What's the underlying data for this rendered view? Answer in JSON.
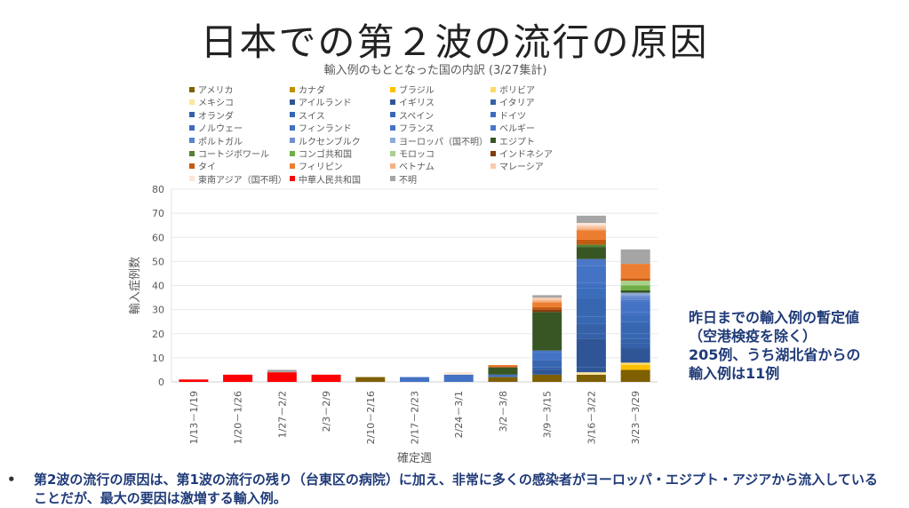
{
  "slide_title": "日本での第２波の流行の原因",
  "note": [
    "昨日までの輸入例の暫定値",
    "（空港検疫を除く）",
    "205例、うち湖北省からの",
    "輸入例は11例"
  ],
  "bullet": {
    "marker": "•",
    "text": "第2波の流行の原因は、第1波の流行の残り（台東区の病院）に加え、非常に多くの感染者がヨーロッパ・エジプト・アジアから流入していることだが、最大の要因は激増する輸入例。"
  },
  "chart_data": {
    "type": "bar",
    "stacked": true,
    "title": "輸入例のもととなった国の内訳 (3/27集計)",
    "xlabel": "確定週",
    "ylabel": "輸入症例数",
    "ylim": [
      0,
      80
    ],
    "yticks": [
      0,
      10,
      20,
      30,
      40,
      50,
      60,
      70,
      80
    ],
    "grid": true,
    "legend_position": "top",
    "categories": [
      "1/13－1/19",
      "1/20－1/26",
      "1/27－2/2",
      "2/3－2/9",
      "2/10－2/16",
      "2/17－2/23",
      "2/24－3/1",
      "3/2－3/8",
      "3/9－3/15",
      "3/16－3/22",
      "3/23－3/29"
    ],
    "series": [
      {
        "name": "アメリカ",
        "color": "#7f6000",
        "values": [
          0,
          0,
          0,
          0,
          2,
          0,
          0,
          2,
          3,
          3,
          5
        ]
      },
      {
        "name": "カナダ",
        "color": "#bf9000",
        "values": [
          0,
          0,
          0,
          0,
          0,
          0,
          0,
          0,
          0,
          0,
          0
        ]
      },
      {
        "name": "ブラジル",
        "color": "#ffc000",
        "values": [
          0,
          0,
          0,
          0,
          0,
          0,
          0,
          0,
          0,
          0,
          2
        ]
      },
      {
        "name": "ボリビア",
        "color": "#ffd966",
        "values": [
          0,
          0,
          0,
          0,
          0,
          0,
          0,
          0,
          0,
          0,
          1
        ]
      },
      {
        "name": "メキシコ",
        "color": "#ffe699",
        "values": [
          0,
          0,
          0,
          0,
          0,
          0,
          0,
          0,
          0,
          1,
          0
        ]
      },
      {
        "name": "アイルランド",
        "color": "#2f5597",
        "values": [
          0,
          0,
          0,
          0,
          0,
          0,
          0,
          0,
          0,
          2,
          0
        ]
      },
      {
        "name": "イギリス",
        "color": "#2f5597",
        "values": [
          0,
          0,
          0,
          0,
          0,
          0,
          0,
          0,
          2,
          12,
          6
        ]
      },
      {
        "name": "イタリア",
        "color": "#3461a8",
        "values": [
          0,
          0,
          0,
          0,
          0,
          0,
          0,
          0,
          1,
          2,
          2
        ]
      },
      {
        "name": "オランダ",
        "color": "#3461a8",
        "values": [
          0,
          0,
          0,
          0,
          0,
          0,
          0,
          0,
          0,
          4,
          2
        ]
      },
      {
        "name": "スイス",
        "color": "#3867b2",
        "values": [
          0,
          0,
          0,
          0,
          0,
          0,
          0,
          0,
          1,
          3,
          2
        ]
      },
      {
        "name": "スペイン",
        "color": "#3867b2",
        "values": [
          0,
          0,
          0,
          0,
          0,
          0,
          0,
          0,
          2,
          8,
          5
        ]
      },
      {
        "name": "ドイツ",
        "color": "#3c6dbd",
        "values": [
          0,
          0,
          0,
          0,
          0,
          0,
          0,
          0,
          0,
          4,
          3
        ]
      },
      {
        "name": "ノルウェー",
        "color": "#3c6dbd",
        "values": [
          0,
          0,
          0,
          0,
          0,
          0,
          0,
          0,
          0,
          1,
          0
        ]
      },
      {
        "name": "フィンランド",
        "color": "#4270c4",
        "values": [
          0,
          0,
          0,
          0,
          0,
          0,
          0,
          0,
          0,
          1,
          1
        ]
      },
      {
        "name": "フランス",
        "color": "#4472c4",
        "values": [
          0,
          0,
          0,
          0,
          0,
          2,
          3,
          1,
          3,
          7,
          4
        ]
      },
      {
        "name": "ベルギー",
        "color": "#4a77c8",
        "values": [
          0,
          0,
          0,
          0,
          0,
          0,
          0,
          0,
          1,
          3,
          1
        ]
      },
      {
        "name": "ポルトガル",
        "color": "#5b83cc",
        "values": [
          0,
          0,
          0,
          0,
          0,
          0,
          0,
          0,
          0,
          0,
          1
        ]
      },
      {
        "name": "ルクセンブルク",
        "color": "#6f90d0",
        "values": [
          0,
          0,
          0,
          0,
          0,
          0,
          0,
          0,
          0,
          0,
          1
        ]
      },
      {
        "name": "ヨーロッパ（国不明）",
        "color": "#8ea9db",
        "values": [
          0,
          0,
          0,
          0,
          0,
          0,
          0,
          0,
          0,
          0,
          1
        ]
      },
      {
        "name": "エジプト",
        "color": "#375623",
        "values": [
          0,
          0,
          0,
          0,
          0,
          0,
          0,
          3,
          16,
          5,
          1
        ]
      },
      {
        "name": "コートジボワール",
        "color": "#548235",
        "values": [
          0,
          0,
          0,
          0,
          0,
          0,
          0,
          0,
          0,
          1,
          0
        ]
      },
      {
        "name": "コンゴ共和国",
        "color": "#70ad47",
        "values": [
          0,
          0,
          0,
          0,
          0,
          0,
          0,
          0,
          0,
          0,
          2
        ]
      },
      {
        "name": "モロッコ",
        "color": "#a9d18e",
        "values": [
          0,
          0,
          0,
          0,
          0,
          0,
          0,
          0,
          0,
          0,
          2
        ]
      },
      {
        "name": "インドネシア",
        "color": "#843c0c",
        "values": [
          0,
          0,
          0,
          0,
          0,
          0,
          0,
          0,
          1,
          0,
          0
        ]
      },
      {
        "name": "タイ",
        "color": "#c55a11",
        "values": [
          0,
          0,
          0,
          0,
          0,
          0,
          0,
          0.5,
          1,
          2,
          1
        ]
      },
      {
        "name": "フィリピン",
        "color": "#ed7d31",
        "values": [
          0,
          0,
          0,
          0,
          0,
          0,
          0,
          0.5,
          2,
          4,
          6
        ]
      },
      {
        "name": "ベトナム",
        "color": "#f4b183",
        "values": [
          0,
          0,
          0,
          0,
          0,
          0,
          0,
          0,
          1,
          1,
          0
        ]
      },
      {
        "name": "マレーシア",
        "color": "#f8cbad",
        "values": [
          0,
          0,
          0,
          0,
          0,
          0,
          0,
          0,
          1,
          1,
          0
        ]
      },
      {
        "name": "東南アジア（国不明）",
        "color": "#fbe5d6",
        "values": [
          0,
          0,
          0,
          0,
          0,
          0,
          1,
          0,
          0,
          1,
          0
        ]
      },
      {
        "name": "中華人民共和国",
        "color": "#ff0000",
        "values": [
          1,
          3,
          4,
          3,
          0,
          0,
          0,
          0,
          0,
          0,
          0
        ]
      },
      {
        "name": "不明",
        "color": "#a5a5a5",
        "values": [
          0,
          0,
          1,
          0,
          0,
          0,
          0,
          0,
          1,
          3,
          6
        ]
      }
    ]
  }
}
